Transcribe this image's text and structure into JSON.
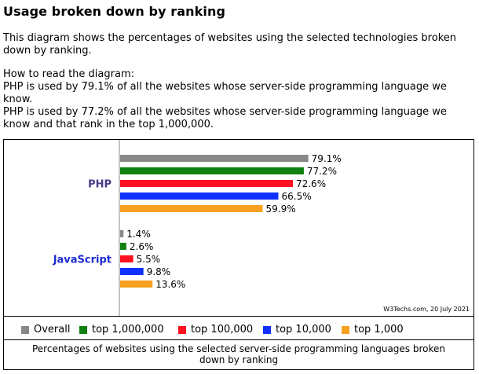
{
  "heading": "Usage broken down by ranking",
  "intro": "This diagram shows the percentages of websites using the selected technologies broken down by ranking.",
  "how_to_read": {
    "title": "How to read the diagram:",
    "line1": "PHP is used by 79.1% of all the websites whose server-side programming language we know.",
    "line2": "PHP is used by 77.2% of all the websites whose server-side programming language we know and that rank in the top 1,000,000."
  },
  "credit": "W3Techs.com, 20 July 2021",
  "caption": "Percentages of websites using the selected server-side programming languages broken down by ranking",
  "legend": [
    {
      "label": "Overall",
      "color": "#888888"
    },
    {
      "label": "top 1,000,000",
      "color": "#108010"
    },
    {
      "label": "top 100,000",
      "color": "#ff1020"
    },
    {
      "label": "top 10,000",
      "color": "#1030ff"
    },
    {
      "label": "top 1,000",
      "color": "#f8a020"
    }
  ],
  "chart_data": {
    "type": "bar",
    "orientation": "horizontal",
    "categories": [
      "PHP",
      "JavaScript"
    ],
    "category_colors": [
      "#4a3a8a",
      "#1a2ad0"
    ],
    "series": [
      {
        "name": "Overall",
        "color": "#888888",
        "values": [
          79.1,
          1.4
        ],
        "labels": [
          "79.1%",
          "1.4%"
        ]
      },
      {
        "name": "top 1,000,000",
        "color": "#108010",
        "values": [
          77.2,
          2.6
        ],
        "labels": [
          "77.2%",
          "2.6%"
        ]
      },
      {
        "name": "top 100,000",
        "color": "#ff1020",
        "values": [
          72.6,
          5.5
        ],
        "labels": [
          "72.6%",
          "5.5%"
        ]
      },
      {
        "name": "top 10,000",
        "color": "#1030ff",
        "values": [
          66.5,
          9.8
        ],
        "labels": [
          "66.5%",
          "9.8%"
        ]
      },
      {
        "name": "top 1,000",
        "color": "#f8a020",
        "values": [
          59.9,
          13.6
        ],
        "labels": [
          "59.9%",
          "13.6%"
        ]
      }
    ],
    "xlim": [
      0,
      100
    ],
    "grid": false,
    "legend_position": "bottom"
  }
}
